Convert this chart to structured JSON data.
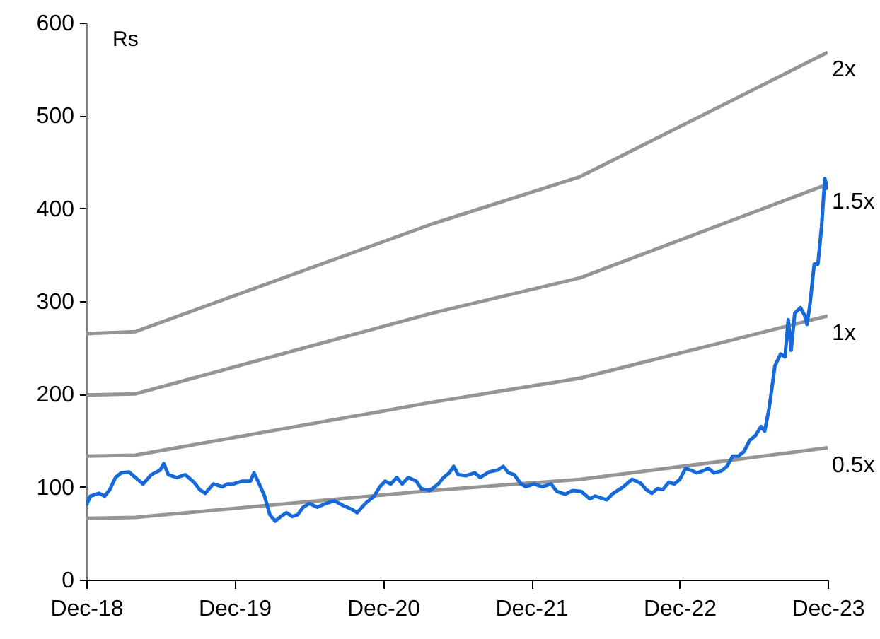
{
  "chart_data": {
    "type": "line",
    "ylabel": "Rs",
    "xlim": [
      "2018-12-01",
      "2023-12-01"
    ],
    "xticks": [
      {
        "value": "2018-12-01",
        "label": "Dec-18"
      },
      {
        "value": "2019-12-01",
        "label": "Dec-19"
      },
      {
        "value": "2020-12-01",
        "label": "Dec-20"
      },
      {
        "value": "2021-12-01",
        "label": "Dec-21"
      },
      {
        "value": "2022-12-01",
        "label": "Dec-22"
      },
      {
        "value": "2023-12-01",
        "label": "Dec-23"
      }
    ],
    "ylim": [
      0,
      600
    ],
    "yticks": [
      0,
      100,
      200,
      300,
      400,
      500,
      600
    ],
    "grid": false,
    "line_style": "solid",
    "marker": "none",
    "series": [
      {
        "name": "2x",
        "color": "#959595",
        "x": [
          "2018-12-01",
          "2019-03-31",
          "2021-03-31",
          "2022-03-31",
          "2023-12-01"
        ],
        "values": [
          265,
          267,
          383,
          434,
          568
        ]
      },
      {
        "name": "1.5x",
        "color": "#959595",
        "x": [
          "2018-12-01",
          "2019-03-31",
          "2021-03-31",
          "2022-03-31",
          "2023-12-01"
        ],
        "values": [
          199,
          200,
          287,
          325,
          426
        ]
      },
      {
        "name": "1x",
        "color": "#959595",
        "x": [
          "2018-12-01",
          "2019-03-31",
          "2021-03-31",
          "2022-03-31",
          "2023-12-01"
        ],
        "values": [
          133,
          134,
          191,
          217,
          284
        ]
      },
      {
        "name": "0.5x",
        "color": "#959595",
        "x": [
          "2018-12-01",
          "2019-03-31",
          "2021-03-31",
          "2022-03-31",
          "2023-12-01"
        ],
        "values": [
          66,
          67,
          96,
          108,
          142
        ]
      },
      {
        "color": "#1569d8",
        "x": [
          "2018-12-01",
          "2018-12-11",
          "2019-01-01",
          "2019-01-15",
          "2019-01-28",
          "2019-02-11",
          "2019-02-25",
          "2019-03-16",
          "2019-04-06",
          "2019-04-20",
          "2019-05-10",
          "2019-06-01",
          "2019-06-10",
          "2019-06-21",
          "2019-07-12",
          "2019-08-02",
          "2019-08-23",
          "2019-09-06",
          "2019-09-20",
          "2019-10-10",
          "2019-11-01",
          "2019-11-14",
          "2019-11-28",
          "2019-12-19",
          "2020-01-09",
          "2020-01-18",
          "2020-01-29",
          "2020-02-13",
          "2020-02-26",
          "2020-03-10",
          "2020-03-24",
          "2020-04-07",
          "2020-04-21",
          "2020-05-05",
          "2020-05-18",
          "2020-06-02",
          "2020-06-22",
          "2020-07-13",
          "2020-08-03",
          "2020-08-24",
          "2020-09-14",
          "2020-09-28",
          "2020-10-18",
          "2020-11-09",
          "2020-11-23",
          "2020-12-06",
          "2020-12-20",
          "2021-01-04",
          "2021-01-17",
          "2021-02-01",
          "2021-02-21",
          "2021-03-05",
          "2021-03-26",
          "2021-04-16",
          "2021-04-29",
          "2021-05-13",
          "2021-05-24",
          "2021-06-04",
          "2021-06-24",
          "2021-07-15",
          "2021-07-28",
          "2021-08-19",
          "2021-09-09",
          "2021-09-23",
          "2021-10-06",
          "2021-10-20",
          "2021-11-04",
          "2021-11-17",
          "2021-12-08",
          "2021-12-28",
          "2022-01-19",
          "2022-02-02",
          "2022-02-22",
          "2022-03-13",
          "2022-04-03",
          "2022-04-24",
          "2022-05-08",
          "2022-05-21",
          "2022-06-05",
          "2022-06-18",
          "2022-07-02",
          "2022-07-16",
          "2022-08-06",
          "2022-08-27",
          "2022-09-10",
          "2022-09-24",
          "2022-10-08",
          "2022-10-21",
          "2022-11-05",
          "2022-11-18",
          "2022-12-02",
          "2022-12-16",
          "2022-12-29",
          "2023-01-13",
          "2023-01-27",
          "2023-02-10",
          "2023-02-24",
          "2023-03-14",
          "2023-03-28",
          "2023-04-11",
          "2023-04-25",
          "2023-05-09",
          "2023-05-23",
          "2023-06-06",
          "2023-06-20",
          "2023-06-29",
          "2023-07-10",
          "2023-07-24",
          "2023-08-07",
          "2023-08-18",
          "2023-08-26",
          "2023-09-02",
          "2023-09-11",
          "2023-09-25",
          "2023-10-05",
          "2023-10-11",
          "2023-10-18",
          "2023-10-29",
          "2023-11-07",
          "2023-11-16",
          "2023-11-24",
          "2023-12-01"
        ],
        "values": [
          80,
          90,
          93,
          90,
          97,
          110,
          115,
          116,
          108,
          103,
          113,
          118,
          125,
          113,
          110,
          113,
          105,
          97,
          93,
          103,
          100,
          103,
          103,
          106,
          106,
          115,
          105,
          90,
          70,
          63,
          68,
          72,
          68,
          70,
          78,
          82,
          78,
          82,
          85,
          80,
          76,
          72,
          82,
          90,
          100,
          106,
          103,
          110,
          103,
          110,
          106,
          98,
          96,
          103,
          110,
          115,
          122,
          113,
          112,
          115,
          110,
          116,
          118,
          122,
          115,
          113,
          104,
          100,
          103,
          100,
          103,
          95,
          92,
          96,
          95,
          87,
          90,
          88,
          86,
          92,
          96,
          100,
          108,
          104,
          97,
          93,
          98,
          97,
          105,
          103,
          108,
          120,
          118,
          115,
          117,
          120,
          115,
          117,
          122,
          133,
          133,
          138,
          150,
          155,
          165,
          160,
          185,
          230,
          243,
          240,
          280,
          247,
          287,
          293,
          285,
          275,
          295,
          340,
          340,
          380,
          432,
          420
        ]
      }
    ]
  }
}
